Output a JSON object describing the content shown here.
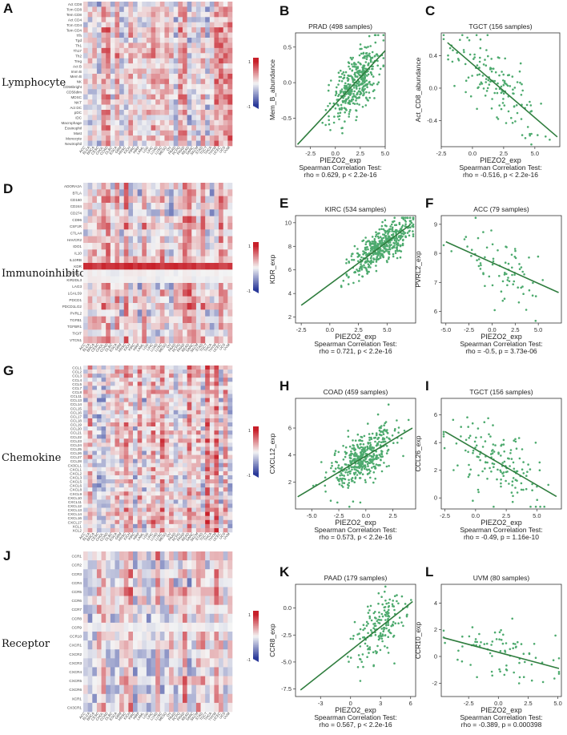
{
  "panels": {
    "A": "A",
    "B": "B",
    "C": "C",
    "D": "D",
    "E": "E",
    "F": "F",
    "G": "G",
    "H": "H",
    "I": "I",
    "J": "J",
    "K": "K",
    "L": "L"
  },
  "heatmap_scale": {
    "max_label": "1",
    "min_label": "-1",
    "high_color": "#c8202a",
    "low_color": "#2b3a9a",
    "mid_color": "#f4f4f4"
  },
  "colors": {
    "point": "#4daa6e",
    "line": "#2f7d3e"
  },
  "x_columns": [
    "ACC",
    "BLCA",
    "BRCA",
    "CESC",
    "CHOL",
    "COAD",
    "DLBC",
    "ESCA",
    "GBM",
    "HNSC",
    "KICH",
    "KIRC",
    "KIRP",
    "LAML",
    "LGG",
    "LIHC",
    "LUAD",
    "LUSC",
    "MESO",
    "OV",
    "PAAD",
    "PCPG",
    "PRAD",
    "READ",
    "SARC",
    "SKCM",
    "STAD",
    "TGCT",
    "THCA",
    "THYM",
    "UCEC",
    "UCS",
    "UVM"
  ],
  "chart_data": [
    {
      "type": "heatmap",
      "group_label": "Lymphocyte",
      "rows": [
        "Act CD8",
        "Tcm CD8",
        "Tem CD8",
        "Act CD4",
        "Tcm CD4",
        "Tem CD4",
        "Tfh",
        "Tgd",
        "Th1",
        "Th17",
        "Th2",
        "Treg",
        "Act B",
        "Imm B",
        "Mem B",
        "NK",
        "CD56bright",
        "CD56dim",
        "MDSC",
        "NKT",
        "Act DC",
        "pDC",
        "iDC",
        "Macrophage",
        "Eosinophil",
        "Mast",
        "Monocyte",
        "Neutrophil"
      ],
      "colorbar_range": [
        -1,
        1
      ],
      "seed": 11
    },
    {
      "type": "heatmap",
      "group_label": "Immunoinhibitor",
      "rows": [
        "ADORA2A",
        "BTLA",
        "CD160",
        "CD244",
        "CD274",
        "CD96",
        "CSF1R",
        "CTLA4",
        "HAVCR2",
        "IDO1",
        "IL10",
        "IL10RB",
        "KDR",
        "KIR2DL1",
        "KIR2DL3",
        "LAG3",
        "LGALS9",
        "PDCD1",
        "PDCD1LG2",
        "PVRL2",
        "TGFB1",
        "TGFBR1",
        "TIGIT",
        "VTCN1"
      ],
      "colorbar_range": [
        -1,
        1
      ],
      "seed": 23
    },
    {
      "type": "heatmap",
      "group_label": "Chemokine",
      "rows": [
        "CCL1",
        "CCL2",
        "CCL3",
        "CCL4",
        "CCL5",
        "CCL7",
        "CCL8",
        "CCL11",
        "CCL13",
        "CCL14",
        "CCL15",
        "CCL16",
        "CCL17",
        "CCL18",
        "CCL19",
        "CCL20",
        "CCL21",
        "CCL22",
        "CCL23",
        "CCL24",
        "CCL25",
        "CCL26",
        "CCL27",
        "CCL28",
        "CX3CL1",
        "CXCL1",
        "CXCL2",
        "CXCL3",
        "CXCL5",
        "CXCL6",
        "CXCL8",
        "CXCL9",
        "CXCL10",
        "CXCL11",
        "CXCL12",
        "CXCL13",
        "CXCL14",
        "CXCL16",
        "CXCL17",
        "XCL1",
        "XCL2"
      ],
      "colorbar_range": [
        -1,
        1
      ],
      "seed": 37
    },
    {
      "type": "heatmap",
      "group_label": "Receptor",
      "rows": [
        "CCR1",
        "CCR2",
        "CCR3",
        "CCR4",
        "CCR5",
        "CCR6",
        "CCR7",
        "CCR8",
        "CCR9",
        "CCR10",
        "CXCR1",
        "CXCR2",
        "CXCR3",
        "CXCR4",
        "CXCR5",
        "CXCR6",
        "XCR1",
        "CX3CR1"
      ],
      "colorbar_range": [
        -1,
        1
      ],
      "seed": 53
    },
    {
      "type": "scatter",
      "title": "PRAD (498 samples)",
      "xlabel": "PIEZO2_exp",
      "ylabel": "Mem_B_abundance",
      "test": "Spearman Correlation Test:",
      "stat": "rho = 0.629, p < 2.2e-16",
      "xlim": [
        -4,
        5
      ],
      "ylim": [
        -0.9,
        0.7
      ],
      "xticks": [
        -2.5,
        0.0,
        2.5,
        5.0
      ],
      "xtick_labels": [
        "-2.5",
        "0.0",
        "2.5",
        "5.0"
      ],
      "yticks": [
        -0.5,
        0.0,
        0.5
      ],
      "ytick_labels": [
        "-0.5",
        "0.0",
        "0.5"
      ],
      "line": {
        "x0": -3.8,
        "y0": -0.87,
        "x1": 5.0,
        "y1": 0.45
      },
      "n_points": 420,
      "x_center": 2.0,
      "x_sd": 1.2,
      "y_noise": 0.2,
      "seed": 101
    },
    {
      "type": "scatter",
      "title": "TGCT (156 samples)",
      "xlabel": "PIEZO2_exp",
      "ylabel": "Act_CD8_abundance",
      "test": "Spearman Correlation Test:",
      "stat": "rho = -0.516, p < 2.2e-16",
      "xlim": [
        -2.5,
        7
      ],
      "ylim": [
        -0.72,
        0.68
      ],
      "xticks": [
        -2.5,
        0.0,
        2.5,
        5.0
      ],
      "xtick_labels": [
        "-2.5",
        "0.0",
        "2.5",
        "5.0"
      ],
      "yticks": [
        -0.4,
        0.0,
        0.4
      ],
      "ytick_labels": [
        "-0.4",
        "0.0",
        "0.4"
      ],
      "line": {
        "x0": -2.0,
        "y0": 0.56,
        "x1": 6.8,
        "y1": -0.6
      },
      "n_points": 150,
      "x_center": 1.8,
      "x_sd": 1.8,
      "y_noise": 0.22,
      "seed": 202
    },
    {
      "type": "scatter",
      "title": "KIRC (534 samples)",
      "xlabel": "PIEZO2_exp",
      "ylabel": "KDR_exp",
      "test": "Spearman Correlation Test:",
      "stat": "rho = 0.721, p < 2.2e-16",
      "xlim": [
        -3,
        7.5
      ],
      "ylim": [
        1.5,
        10.6
      ],
      "xticks": [
        -2.5,
        0.0,
        2.5,
        5.0
      ],
      "xtick_labels": [
        "-2.5",
        "0.0",
        "2.5",
        "5.0"
      ],
      "yticks": [
        2,
        4,
        6,
        8,
        10
      ],
      "ytick_labels": [
        "2",
        "4",
        "6",
        "8",
        "10"
      ],
      "line": {
        "x0": -2.5,
        "y0": 3.0,
        "x1": 7.0,
        "y1": 9.8
      },
      "n_points": 480,
      "x_center": 4.5,
      "x_sd": 1.4,
      "y_noise": 0.75,
      "seed": 303
    },
    {
      "type": "scatter",
      "title": "ACC (79 samples)",
      "xlabel": "PIEZO2_exp",
      "ylabel": "PVRL2_exp",
      "test": "Spearman Correlation Test:",
      "stat": "rho = -0.5, p = 3.73e-06",
      "xlim": [
        -5.5,
        7.5
      ],
      "ylim": [
        5.6,
        9.3
      ],
      "xticks": [
        -5.0,
        -2.5,
        0.0,
        2.5,
        5.0
      ],
      "xtick_labels": [
        "-5.0",
        "-2.5",
        "0.0",
        "2.5",
        "5.0"
      ],
      "yticks": [
        6,
        7,
        8,
        9
      ],
      "ytick_labels": [
        "6",
        "7",
        "8",
        "9"
      ],
      "line": {
        "x0": -5.0,
        "y0": 8.4,
        "x1": 7.2,
        "y1": 6.65
      },
      "n_points": 79,
      "x_center": 1.0,
      "x_sd": 2.8,
      "y_noise": 0.55,
      "seed": 404
    },
    {
      "type": "scatter",
      "title": "COAD (459 samples)",
      "xlabel": "PIEZO2_exp",
      "ylabel": "CXCL12_exp",
      "test": "Spearman Correlation Test:",
      "stat": "rho = 0.573, p < 2.2e-16",
      "xlim": [
        -6.5,
        4.6
      ],
      "ylim": [
        0.0,
        8.2
      ],
      "xticks": [
        -5.0,
        -2.5,
        0.0,
        2.5
      ],
      "xtick_labels": [
        "-5.0",
        "-2.5",
        "0.0",
        "2.5"
      ],
      "yticks": [
        2,
        4,
        6
      ],
      "ytick_labels": [
        "2",
        "4",
        "6"
      ],
      "line": {
        "x0": -6.3,
        "y0": 0.9,
        "x1": 4.3,
        "y1": 6.0
      },
      "n_points": 430,
      "x_center": -0.2,
      "x_sd": 1.5,
      "y_noise": 0.9,
      "seed": 505
    },
    {
      "type": "scatter",
      "title": "TGCT (156 samples)",
      "xlabel": "PIEZO2_exp",
      "ylabel": "CCL26_exp",
      "test": "Spearman Correlation Test:",
      "stat": "rho = -0.49, p = 1.16e-10",
      "xlim": [
        -2.8,
        7
      ],
      "ylim": [
        -0.8,
        7.2
      ],
      "xticks": [
        -2.5,
        0.0,
        2.5,
        5.0
      ],
      "xtick_labels": [
        "-2.5",
        "0.0",
        "2.5",
        "5.0"
      ],
      "yticks": [
        0,
        2,
        4,
        6
      ],
      "ytick_labels": [
        "0",
        "2",
        "4",
        "6"
      ],
      "line": {
        "x0": -2.5,
        "y0": 4.8,
        "x1": 6.6,
        "y1": 0.1
      },
      "n_points": 150,
      "x_center": 1.8,
      "x_sd": 1.8,
      "y_noise": 1.2,
      "seed": 606
    },
    {
      "type": "scatter",
      "title": "PAAD (179 samples)",
      "xlabel": "PIEZO2_exp",
      "ylabel": "CCR8_exp",
      "test": "Spearman Correlation Test:",
      "stat": "rho = 0.567, p < 2.2e-16",
      "xlim": [
        -5.5,
        6.5
      ],
      "ylim": [
        -8.2,
        2.2
      ],
      "xticks": [
        -3,
        0,
        3,
        6
      ],
      "xtick_labels": [
        "-3",
        "0",
        "3",
        "6"
      ],
      "yticks": [
        -7.5,
        -5.0,
        -2.5,
        0.0
      ],
      "ytick_labels": [
        "-7.5",
        "-5.0",
        "-2.5",
        "0.0"
      ],
      "line": {
        "x0": -5.0,
        "y0": -7.6,
        "x1": 6.2,
        "y1": 0.6
      },
      "n_points": 175,
      "x_center": 3.0,
      "x_sd": 1.3,
      "y_noise": 1.5,
      "seed": 707
    },
    {
      "type": "scatter",
      "title": "UVM (80 samples)",
      "xlabel": "PIEZO2_exp",
      "ylabel": "CCR10_exp",
      "test": "Spearman Correlation Test:",
      "stat": "rho = -0.389, p = 0.000398",
      "xlim": [
        -4.8,
        5.3
      ],
      "ylim": [
        -3.0,
        5.4
      ],
      "xticks": [
        -2.5,
        0.0,
        2.5,
        5.0
      ],
      "xtick_labels": [
        "-2.5",
        "0.0",
        "2.5",
        "5.0"
      ],
      "yticks": [
        -2,
        0,
        2,
        4
      ],
      "ytick_labels": [
        "-2",
        "0",
        "2",
        "4"
      ],
      "line": {
        "x0": -4.6,
        "y0": 1.4,
        "x1": 5.1,
        "y1": -0.9
      },
      "n_points": 80,
      "x_center": 0.5,
      "x_sd": 2.3,
      "y_noise": 1.1,
      "seed": 808
    }
  ]
}
